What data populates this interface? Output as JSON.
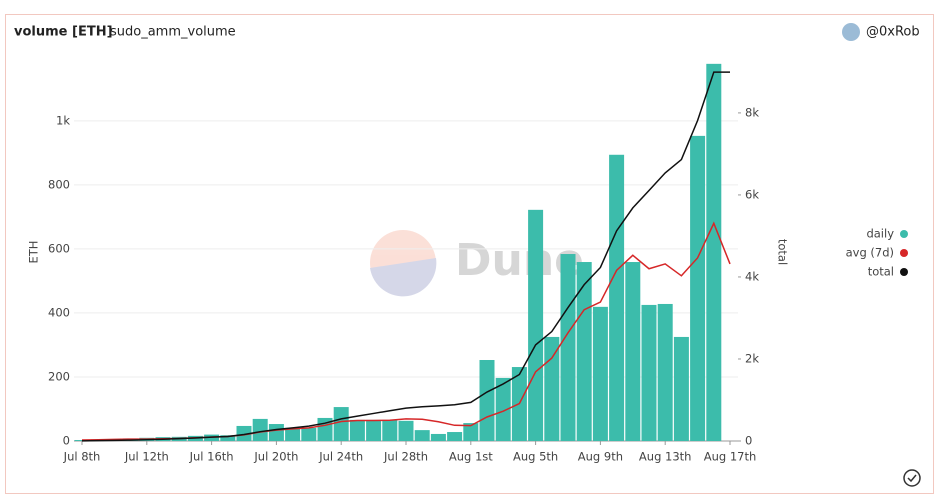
{
  "header": {
    "title": "volume [ETH]",
    "query": "sudo_amm_volume",
    "author": "@0xRob"
  },
  "watermark": "Dune",
  "chart_data": {
    "type": "bar",
    "categories": [
      "Jul 8th",
      null,
      null,
      null,
      "Jul 12th",
      null,
      null,
      null,
      "Jul 16th",
      null,
      null,
      null,
      "Jul 20th",
      null,
      null,
      null,
      "Jul 24th",
      null,
      null,
      null,
      "Jul 28th",
      null,
      null,
      null,
      "Aug 1st",
      null,
      null,
      null,
      "Aug 5th",
      null,
      null,
      null,
      "Aug 9th",
      null,
      null,
      null,
      "Aug 13th",
      null,
      null,
      null,
      "Aug 17th"
    ],
    "series": [
      {
        "name": "daily",
        "color": "#3cbcab",
        "type": "bar",
        "values": [
          3,
          5,
          6,
          8,
          10,
          12,
          13,
          16,
          20,
          18,
          47,
          69,
          53,
          41,
          41,
          72,
          106,
          66,
          66,
          66,
          63,
          34,
          22,
          28,
          56,
          253,
          197,
          231,
          722,
          325,
          584,
          559,
          419,
          894,
          559,
          425,
          428,
          325,
          953,
          1178,
          0
        ]
      },
      {
        "name": "avg (7d)",
        "color": "#d62728",
        "type": "line",
        "values": [
          3,
          4,
          5,
          6,
          6,
          7,
          8,
          10,
          12,
          14,
          19,
          28,
          34,
          38,
          41,
          49,
          61,
          64,
          64,
          65,
          69,
          68,
          60,
          49,
          48,
          75,
          93,
          117,
          216,
          259,
          338,
          410,
          434,
          533,
          580,
          538,
          553,
          516,
          572,
          680,
          553
        ]
      },
      {
        "name": "total",
        "color": "#111111",
        "type": "line",
        "axis": "y2",
        "values": [
          3,
          8,
          14,
          22,
          32,
          44,
          57,
          73,
          93,
          111,
          158,
          227,
          280,
          321,
          362,
          434,
          540,
          606,
          672,
          738,
          801,
          835,
          857,
          885,
          941,
          1194,
          1391,
          1622,
          2344,
          2669,
          3253,
          3812,
          4231,
          5125,
          5684,
          6109,
          6537,
          6862,
          7815,
          8993,
          8993
        ]
      }
    ],
    "ylabel": "ETH",
    "y2label": "total",
    "ylim": [
      0,
      1190
    ],
    "yticks": [
      0,
      200,
      400,
      600,
      800,
      {
        "value": 1000,
        "label": "1k"
      }
    ],
    "y2lim": [
      0,
      9290
    ],
    "y2ticks": [
      0,
      {
        "value": 2000,
        "label": "2k"
      },
      {
        "value": 4000,
        "label": "4k"
      },
      {
        "value": 6000,
        "label": "6k"
      },
      {
        "value": 8000,
        "label": "8k"
      }
    ],
    "grid": true,
    "legend": "right"
  }
}
